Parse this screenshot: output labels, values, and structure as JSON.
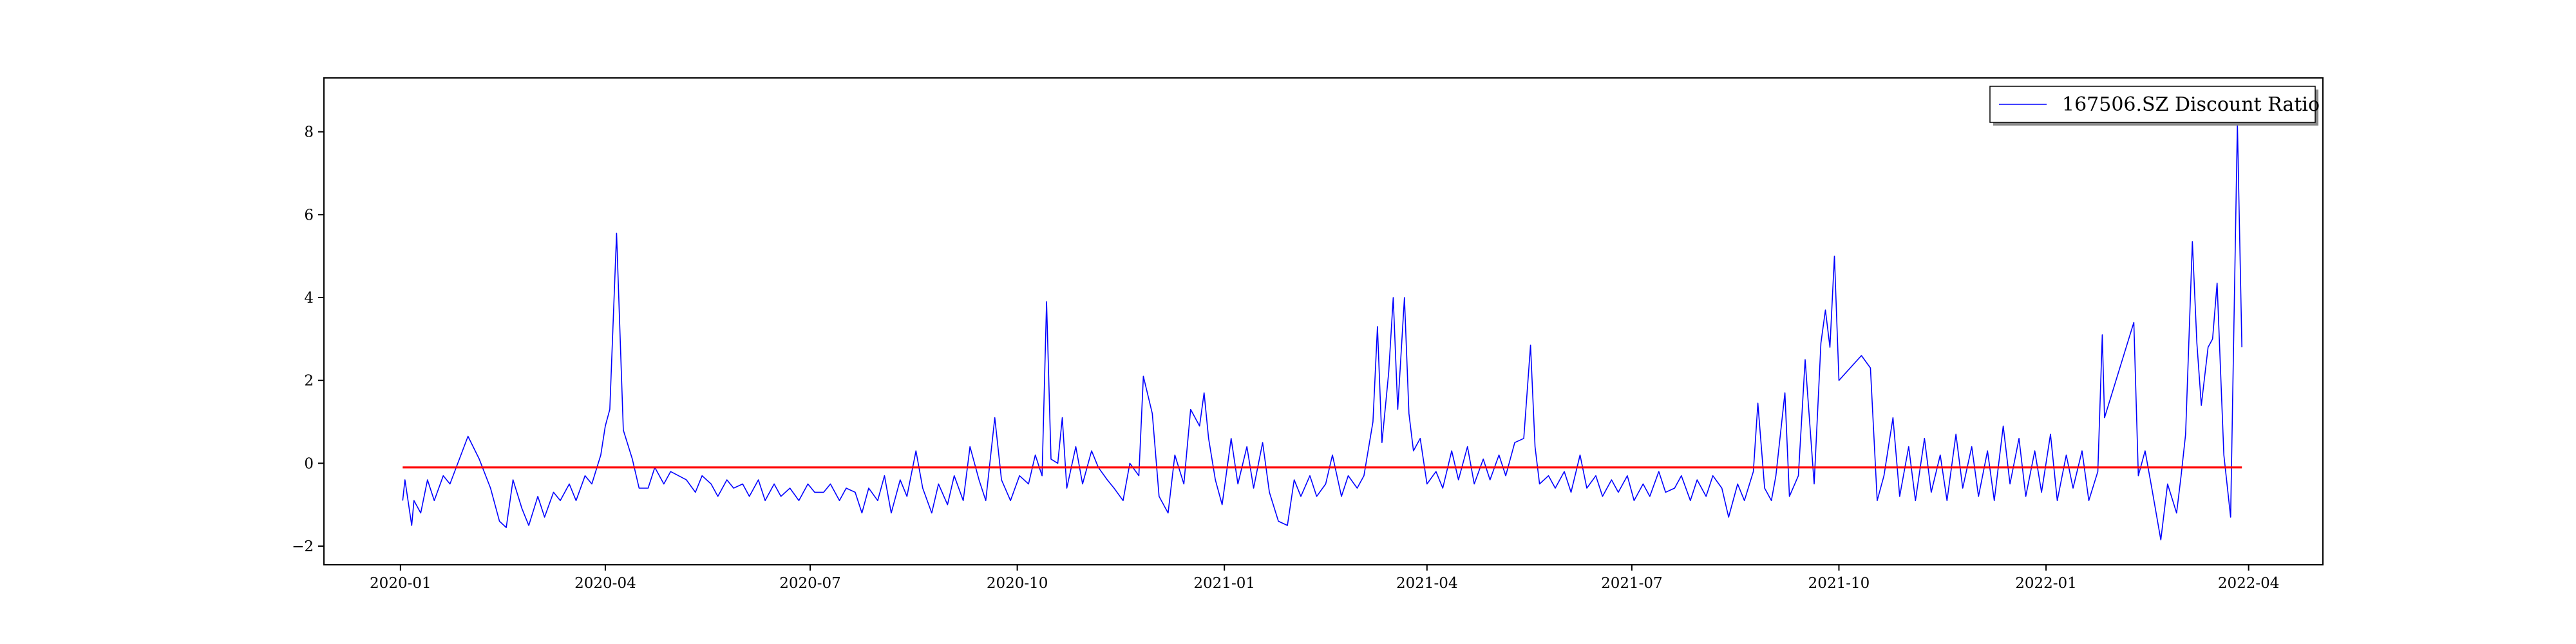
{
  "chart_data": {
    "type": "line",
    "title": "",
    "xlabel": "",
    "ylabel": "",
    "xlim": [
      "2019-11-28",
      "2022-05-04"
    ],
    "ylim": [
      -2.45,
      9.3
    ],
    "x_ticks": [
      "2020-01",
      "2020-04",
      "2020-07",
      "2020-10",
      "2021-01",
      "2021-04",
      "2021-07",
      "2021-10",
      "2022-01",
      "2022-04"
    ],
    "y_ticks": [
      -2,
      0,
      2,
      4,
      6,
      8
    ],
    "y_tick_labels": [
      "−2",
      "0",
      "2",
      "4",
      "6",
      "8"
    ],
    "grid": false,
    "legend_position": "top-right",
    "series": [
      {
        "name": "167506.SZ Discount Ratio",
        "color": "#0000ff",
        "points": [
          [
            "2020-01-02",
            -0.9
          ],
          [
            "2020-01-03",
            -0.4
          ],
          [
            "2020-01-06",
            -1.5
          ],
          [
            "2020-01-07",
            -0.9
          ],
          [
            "2020-01-10",
            -1.2
          ],
          [
            "2020-01-13",
            -0.4
          ],
          [
            "2020-01-16",
            -0.9
          ],
          [
            "2020-01-20",
            -0.3
          ],
          [
            "2020-01-23",
            -0.5
          ],
          [
            "2020-01-31",
            0.65
          ],
          [
            "2020-02-05",
            0.1
          ],
          [
            "2020-02-10",
            -0.6
          ],
          [
            "2020-02-14",
            -1.4
          ],
          [
            "2020-02-17",
            -1.55
          ],
          [
            "2020-02-20",
            -0.4
          ],
          [
            "2020-02-24",
            -1.1
          ],
          [
            "2020-02-27",
            -1.5
          ],
          [
            "2020-03-02",
            -0.8
          ],
          [
            "2020-03-05",
            -1.3
          ],
          [
            "2020-03-09",
            -0.7
          ],
          [
            "2020-03-12",
            -0.9
          ],
          [
            "2020-03-16",
            -0.5
          ],
          [
            "2020-03-19",
            -0.9
          ],
          [
            "2020-03-23",
            -0.3
          ],
          [
            "2020-03-26",
            -0.5
          ],
          [
            "2020-03-30",
            0.2
          ],
          [
            "2020-04-01",
            0.9
          ],
          [
            "2020-04-03",
            1.3
          ],
          [
            "2020-04-06",
            5.55
          ],
          [
            "2020-04-09",
            0.8
          ],
          [
            "2020-04-13",
            0.1
          ],
          [
            "2020-04-16",
            -0.6
          ],
          [
            "2020-04-20",
            -0.6
          ],
          [
            "2020-04-23",
            -0.1
          ],
          [
            "2020-04-27",
            -0.5
          ],
          [
            "2020-04-30",
            -0.2
          ],
          [
            "2020-05-07",
            -0.4
          ],
          [
            "2020-05-11",
            -0.7
          ],
          [
            "2020-05-14",
            -0.3
          ],
          [
            "2020-05-18",
            -0.5
          ],
          [
            "2020-05-21",
            -0.8
          ],
          [
            "2020-05-25",
            -0.4
          ],
          [
            "2020-05-28",
            -0.6
          ],
          [
            "2020-06-01",
            -0.5
          ],
          [
            "2020-06-04",
            -0.8
          ],
          [
            "2020-06-08",
            -0.4
          ],
          [
            "2020-06-11",
            -0.9
          ],
          [
            "2020-06-15",
            -0.5
          ],
          [
            "2020-06-18",
            -0.8
          ],
          [
            "2020-06-22",
            -0.6
          ],
          [
            "2020-06-26",
            -0.9
          ],
          [
            "2020-06-30",
            -0.5
          ],
          [
            "2020-07-03",
            -0.7
          ],
          [
            "2020-07-07",
            -0.7
          ],
          [
            "2020-07-10",
            -0.5
          ],
          [
            "2020-07-14",
            -0.9
          ],
          [
            "2020-07-17",
            -0.6
          ],
          [
            "2020-07-21",
            -0.7
          ],
          [
            "2020-07-24",
            -1.2
          ],
          [
            "2020-07-27",
            -0.6
          ],
          [
            "2020-07-31",
            -0.9
          ],
          [
            "2020-08-03",
            -0.3
          ],
          [
            "2020-08-06",
            -1.2
          ],
          [
            "2020-08-10",
            -0.4
          ],
          [
            "2020-08-13",
            -0.8
          ],
          [
            "2020-08-17",
            0.3
          ],
          [
            "2020-08-20",
            -0.6
          ],
          [
            "2020-08-24",
            -1.2
          ],
          [
            "2020-08-27",
            -0.5
          ],
          [
            "2020-08-31",
            -1.0
          ],
          [
            "2020-09-03",
            -0.3
          ],
          [
            "2020-09-07",
            -0.9
          ],
          [
            "2020-09-10",
            0.4
          ],
          [
            "2020-09-14",
            -0.4
          ],
          [
            "2020-09-17",
            -0.9
          ],
          [
            "2020-09-21",
            1.1
          ],
          [
            "2020-09-24",
            -0.4
          ],
          [
            "2020-09-28",
            -0.9
          ],
          [
            "2020-10-02",
            -0.3
          ],
          [
            "2020-10-06",
            -0.5
          ],
          [
            "2020-10-09",
            0.2
          ],
          [
            "2020-10-12",
            -0.3
          ],
          [
            "2020-10-14",
            3.9
          ],
          [
            "2020-10-16",
            0.1
          ],
          [
            "2020-10-19",
            0.0
          ],
          [
            "2020-10-21",
            1.1
          ],
          [
            "2020-10-23",
            -0.6
          ],
          [
            "2020-10-27",
            0.4
          ],
          [
            "2020-10-30",
            -0.5
          ],
          [
            "2020-11-03",
            0.3
          ],
          [
            "2020-11-06",
            -0.1
          ],
          [
            "2020-11-10",
            -0.4
          ],
          [
            "2020-11-13",
            -0.6
          ],
          [
            "2020-11-17",
            -0.9
          ],
          [
            "2020-11-20",
            0.0
          ],
          [
            "2020-11-24",
            -0.3
          ],
          [
            "2020-11-26",
            2.1
          ],
          [
            "2020-11-30",
            1.2
          ],
          [
            "2020-12-03",
            -0.8
          ],
          [
            "2020-12-07",
            -1.2
          ],
          [
            "2020-12-10",
            0.2
          ],
          [
            "2020-12-14",
            -0.5
          ],
          [
            "2020-12-17",
            1.3
          ],
          [
            "2020-12-21",
            0.9
          ],
          [
            "2020-12-23",
            1.7
          ],
          [
            "2020-12-25",
            0.6
          ],
          [
            "2020-12-28",
            -0.4
          ],
          [
            "2020-12-31",
            -1.0
          ],
          [
            "2021-01-04",
            0.6
          ],
          [
            "2021-01-07",
            -0.5
          ],
          [
            "2021-01-11",
            0.4
          ],
          [
            "2021-01-14",
            -0.6
          ],
          [
            "2021-01-18",
            0.5
          ],
          [
            "2021-01-21",
            -0.7
          ],
          [
            "2021-01-25",
            -1.4
          ],
          [
            "2021-01-29",
            -1.5
          ],
          [
            "2021-02-01",
            -0.4
          ],
          [
            "2021-02-04",
            -0.8
          ],
          [
            "2021-02-08",
            -0.3
          ],
          [
            "2021-02-11",
            -0.8
          ],
          [
            "2021-02-15",
            -0.5
          ],
          [
            "2021-02-18",
            0.2
          ],
          [
            "2021-02-22",
            -0.8
          ],
          [
            "2021-02-25",
            -0.3
          ],
          [
            "2021-03-01",
            -0.6
          ],
          [
            "2021-03-04",
            -0.3
          ],
          [
            "2021-03-08",
            1.0
          ],
          [
            "2021-03-10",
            3.3
          ],
          [
            "2021-03-12",
            0.5
          ],
          [
            "2021-03-15",
            2.2
          ],
          [
            "2021-03-17",
            4.0
          ],
          [
            "2021-03-19",
            1.3
          ],
          [
            "2021-03-22",
            4.0
          ],
          [
            "2021-03-24",
            1.2
          ],
          [
            "2021-03-26",
            0.3
          ],
          [
            "2021-03-29",
            0.6
          ],
          [
            "2021-04-01",
            -0.5
          ],
          [
            "2021-04-05",
            -0.2
          ],
          [
            "2021-04-08",
            -0.6
          ],
          [
            "2021-04-12",
            0.3
          ],
          [
            "2021-04-15",
            -0.4
          ],
          [
            "2021-04-19",
            0.4
          ],
          [
            "2021-04-22",
            -0.5
          ],
          [
            "2021-04-26",
            0.1
          ],
          [
            "2021-04-29",
            -0.4
          ],
          [
            "2021-05-03",
            0.2
          ],
          [
            "2021-05-06",
            -0.3
          ],
          [
            "2021-05-10",
            0.5
          ],
          [
            "2021-05-14",
            0.6
          ],
          [
            "2021-05-17",
            2.85
          ],
          [
            "2021-05-19",
            0.4
          ],
          [
            "2021-05-21",
            -0.5
          ],
          [
            "2021-05-25",
            -0.3
          ],
          [
            "2021-05-28",
            -0.6
          ],
          [
            "2021-06-01",
            -0.2
          ],
          [
            "2021-06-04",
            -0.7
          ],
          [
            "2021-06-08",
            0.2
          ],
          [
            "2021-06-11",
            -0.6
          ],
          [
            "2021-06-15",
            -0.3
          ],
          [
            "2021-06-18",
            -0.8
          ],
          [
            "2021-06-22",
            -0.4
          ],
          [
            "2021-06-25",
            -0.7
          ],
          [
            "2021-06-29",
            -0.3
          ],
          [
            "2021-07-02",
            -0.9
          ],
          [
            "2021-07-06",
            -0.5
          ],
          [
            "2021-07-09",
            -0.8
          ],
          [
            "2021-07-13",
            -0.2
          ],
          [
            "2021-07-16",
            -0.7
          ],
          [
            "2021-07-20",
            -0.6
          ],
          [
            "2021-07-23",
            -0.3
          ],
          [
            "2021-07-27",
            -0.9
          ],
          [
            "2021-07-30",
            -0.4
          ],
          [
            "2021-08-03",
            -0.8
          ],
          [
            "2021-08-06",
            -0.3
          ],
          [
            "2021-08-10",
            -0.6
          ],
          [
            "2021-08-13",
            -1.3
          ],
          [
            "2021-08-17",
            -0.5
          ],
          [
            "2021-08-20",
            -0.9
          ],
          [
            "2021-08-24",
            -0.2
          ],
          [
            "2021-08-26",
            1.45
          ],
          [
            "2021-08-29",
            -0.6
          ],
          [
            "2021-09-01",
            -0.9
          ],
          [
            "2021-09-03",
            -0.3
          ],
          [
            "2021-09-07",
            1.7
          ],
          [
            "2021-09-09",
            -0.8
          ],
          [
            "2021-09-13",
            -0.3
          ],
          [
            "2021-09-16",
            2.5
          ],
          [
            "2021-09-20",
            -0.5
          ],
          [
            "2021-09-23",
            2.9
          ],
          [
            "2021-09-25",
            3.7
          ],
          [
            "2021-09-27",
            2.8
          ],
          [
            "2021-09-29",
            5.0
          ],
          [
            "2021-10-01",
            2.0
          ],
          [
            "2021-10-11",
            2.6
          ],
          [
            "2021-10-15",
            2.3
          ],
          [
            "2021-10-18",
            -0.9
          ],
          [
            "2021-10-21",
            -0.3
          ],
          [
            "2021-10-25",
            1.1
          ],
          [
            "2021-10-28",
            -0.8
          ],
          [
            "2021-11-01",
            0.4
          ],
          [
            "2021-11-04",
            -0.9
          ],
          [
            "2021-11-08",
            0.6
          ],
          [
            "2021-11-11",
            -0.7
          ],
          [
            "2021-11-15",
            0.2
          ],
          [
            "2021-11-18",
            -0.9
          ],
          [
            "2021-11-22",
            0.7
          ],
          [
            "2021-11-25",
            -0.6
          ],
          [
            "2021-11-29",
            0.4
          ],
          [
            "2021-12-02",
            -0.8
          ],
          [
            "2021-12-06",
            0.3
          ],
          [
            "2021-12-09",
            -0.9
          ],
          [
            "2021-12-13",
            0.9
          ],
          [
            "2021-12-16",
            -0.5
          ],
          [
            "2021-12-20",
            0.6
          ],
          [
            "2021-12-23",
            -0.8
          ],
          [
            "2021-12-27",
            0.3
          ],
          [
            "2021-12-30",
            -0.7
          ],
          [
            "2022-01-03",
            0.7
          ],
          [
            "2022-01-06",
            -0.9
          ],
          [
            "2022-01-10",
            0.2
          ],
          [
            "2022-01-13",
            -0.6
          ],
          [
            "2022-01-17",
            0.3
          ],
          [
            "2022-01-20",
            -0.9
          ],
          [
            "2022-01-24",
            -0.2
          ],
          [
            "2022-01-26",
            3.1
          ],
          [
            "2022-01-27",
            1.1
          ],
          [
            "2022-02-09",
            3.4
          ],
          [
            "2022-02-11",
            -0.3
          ],
          [
            "2022-02-14",
            0.3
          ],
          [
            "2022-02-17",
            -0.6
          ],
          [
            "2022-02-21",
            -1.85
          ],
          [
            "2022-02-24",
            -0.5
          ],
          [
            "2022-02-28",
            -1.2
          ],
          [
            "2022-03-02",
            -0.3
          ],
          [
            "2022-03-04",
            0.7
          ],
          [
            "2022-03-07",
            5.35
          ],
          [
            "2022-03-09",
            2.9
          ],
          [
            "2022-03-11",
            1.4
          ],
          [
            "2022-03-14",
            2.8
          ],
          [
            "2022-03-16",
            3.0
          ],
          [
            "2022-03-18",
            4.35
          ],
          [
            "2022-03-21",
            0.2
          ],
          [
            "2022-03-24",
            -1.3
          ],
          [
            "2022-03-27",
            8.2
          ],
          [
            "2022-03-29",
            2.8
          ]
        ]
      },
      {
        "name": "",
        "color": "#ff0000",
        "points": [
          [
            "2020-01-02",
            -0.1
          ],
          [
            "2022-03-29",
            -0.1
          ]
        ]
      }
    ]
  }
}
